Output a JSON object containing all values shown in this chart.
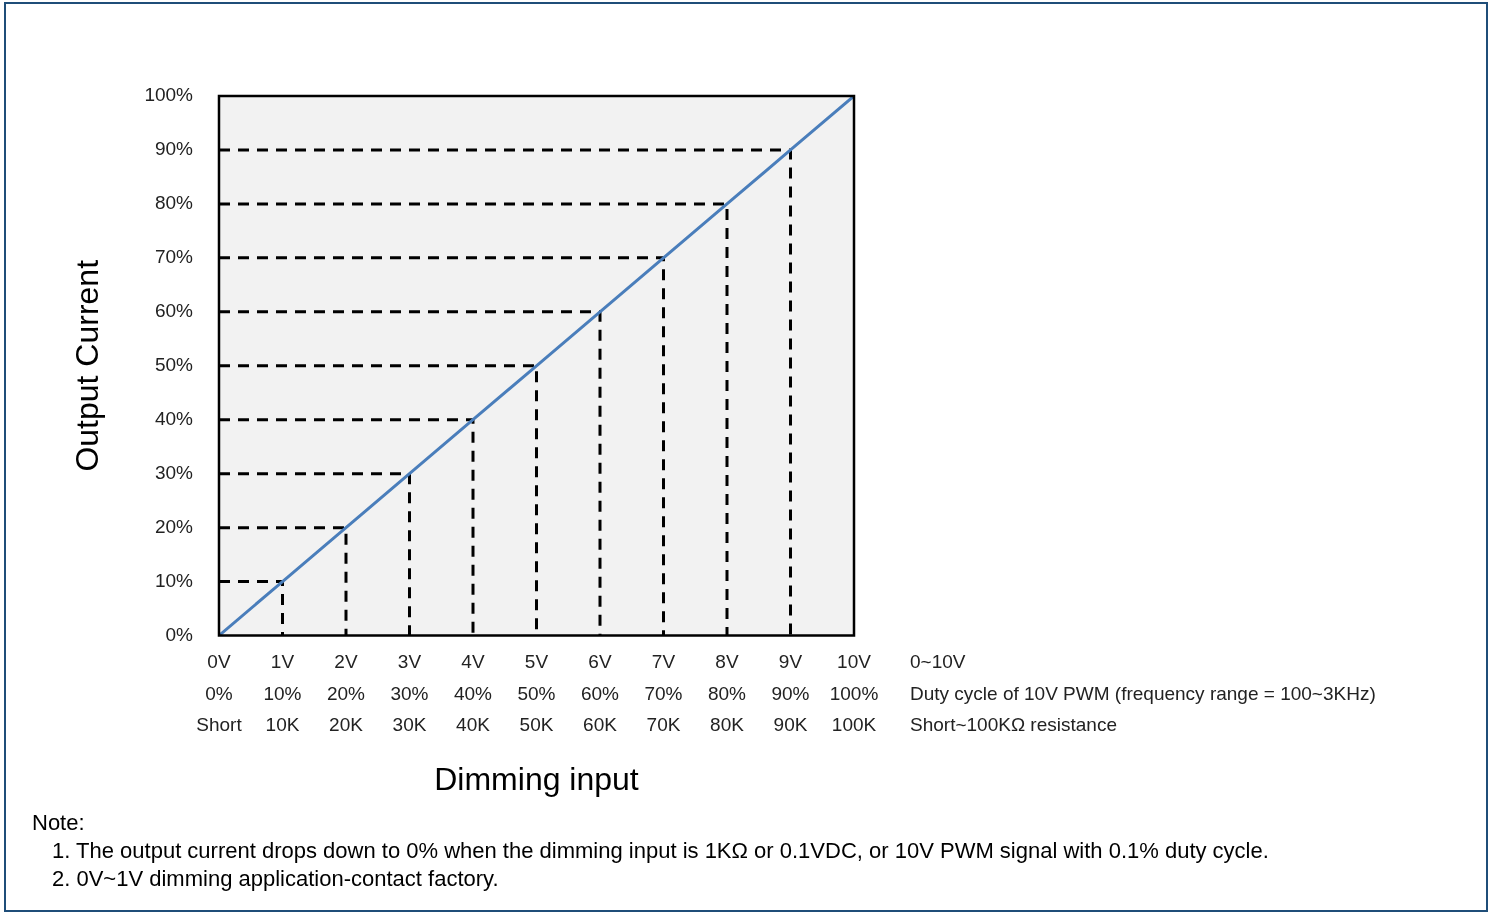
{
  "chart_data": {
    "type": "line",
    "xlabel": "Dimming input",
    "ylabel": "Output Current",
    "categories": [
      "0V\n0%\nShort",
      "1V\n10%\n10K",
      "2V\n20%\n20K",
      "3V\n30%\n30K",
      "4V\n40%\n40K",
      "5V\n50%\n50K",
      "6V\n60%\n60K",
      "7V\n70%\n70K",
      "8V\n80%\n80K",
      "9V\n90%\n90K",
      "10V\n100%\n100K"
    ],
    "ylim": [
      0,
      100
    ],
    "yticks": [
      {
        "value": 0,
        "label": "0%"
      },
      {
        "value": 10,
        "label": "10%"
      },
      {
        "value": 20,
        "label": "20%"
      },
      {
        "value": 30,
        "label": "30%"
      },
      {
        "value": 40,
        "label": "40%"
      },
      {
        "value": 50,
        "label": "50%"
      },
      {
        "value": 60,
        "label": "60%"
      },
      {
        "value": 70,
        "label": "70%"
      },
      {
        "value": 80,
        "label": "80%"
      },
      {
        "value": 90,
        "label": "90%"
      },
      {
        "value": 100,
        "label": "100%"
      }
    ],
    "marker": "none",
    "series": [
      {
        "color": "#4a7ebb",
        "line_style": "solid",
        "values": [
          0,
          10,
          20,
          30,
          40,
          50,
          60,
          70,
          80,
          90,
          100
        ]
      },
      {
        "color": "#000000",
        "line_style": "dashed",
        "x": [
          "0V\n0%\nShort",
          "1V\n10%\n10K",
          "1V\n10%\n10K"
        ],
        "values": [
          10,
          10,
          0
        ]
      },
      {
        "color": "#000000",
        "line_style": "dashed",
        "x": [
          "0V\n0%\nShort",
          "2V\n20%\n20K",
          "2V\n20%\n20K"
        ],
        "values": [
          20,
          20,
          0
        ]
      },
      {
        "color": "#000000",
        "line_style": "dashed",
        "x": [
          "0V\n0%\nShort",
          "3V\n30%\n30K",
          "3V\n30%\n30K"
        ],
        "values": [
          30,
          30,
          0
        ]
      },
      {
        "color": "#000000",
        "line_style": "dashed",
        "x": [
          "0V\n0%\nShort",
          "4V\n40%\n40K",
          "4V\n40%\n40K"
        ],
        "values": [
          40,
          40,
          0
        ]
      },
      {
        "color": "#000000",
        "line_style": "dashed",
        "x": [
          "0V\n0%\nShort",
          "5V\n50%\n50K",
          "5V\n50%\n50K"
        ],
        "values": [
          50,
          50,
          0
        ]
      },
      {
        "color": "#000000",
        "line_style": "dashed",
        "x": [
          "0V\n0%\nShort",
          "6V\n60%\n60K",
          "6V\n60%\n60K"
        ],
        "values": [
          60,
          60,
          0
        ]
      },
      {
        "color": "#000000",
        "line_style": "dashed",
        "x": [
          "0V\n0%\nShort",
          "7V\n70%\n70K",
          "7V\n70%\n70K"
        ],
        "values": [
          70,
          70,
          0
        ]
      },
      {
        "color": "#000000",
        "line_style": "dashed",
        "x": [
          "0V\n0%\nShort",
          "8V\n80%\n80K",
          "8V\n80%\n80K"
        ],
        "values": [
          80,
          80,
          0
        ]
      },
      {
        "color": "#000000",
        "line_style": "dashed",
        "x": [
          "0V\n0%\nShort",
          "9V\n90%\n90K",
          "9V\n90%\n90K"
        ],
        "values": [
          90,
          90,
          0
        ]
      }
    ],
    "annotations": [
      "0~10V",
      "Duty cycle of 10V PWM (frequency range = 100~3KHz)",
      "Short~100KΩ resistance",
      "Note:",
      "1.    The output current drops down to 0% when the dimming input is 1KΩ or 0.1VDC, or 10V PWM signal with 0.1% duty cycle.",
      "2.    0V~1V dimming application-contact factory."
    ]
  }
}
